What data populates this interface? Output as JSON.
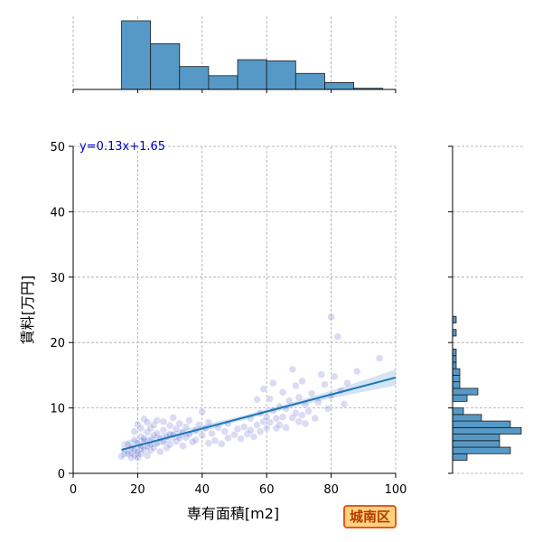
{
  "chart_data": {
    "type": "scatter",
    "title": "",
    "xlabel": "専有面積[m2]",
    "ylabel": "賃料[万円]",
    "xlim": [
      0,
      100
    ],
    "ylim": [
      0,
      50
    ],
    "x_ticks": [
      "0",
      "20",
      "40",
      "60",
      "80",
      "100"
    ],
    "y_ticks": [
      "0",
      "10",
      "20",
      "30",
      "40",
      "50"
    ],
    "grid": true,
    "regression": {
      "slope": 0.13,
      "intercept": 1.65,
      "x_range": [
        15,
        100
      ]
    },
    "equation_label": "y=0.13x+1.65",
    "badge": "城南区",
    "colors": {
      "points": "#5a5acf",
      "fit_line": "#1f77b4",
      "hist_bar": "#5699c6",
      "equation": "#0000bb",
      "badge_border": "#e8571a",
      "badge_fill": "#ffd27f"
    },
    "marginal_x_hist": {
      "bin_edges": [
        15,
        24,
        33,
        42,
        51,
        60,
        69,
        78,
        87,
        96
      ],
      "counts": [
        60,
        40,
        20,
        12,
        26,
        25,
        14,
        6,
        1
      ]
    },
    "marginal_y_hist": {
      "bin_edges": [
        2,
        3,
        4,
        5,
        6,
        7,
        8,
        9,
        10,
        11,
        12,
        13,
        14,
        15,
        16,
        17,
        18,
        19
      ],
      "counts": [
        4,
        16,
        13,
        13,
        19,
        16,
        8,
        3,
        0,
        4,
        7,
        2,
        2,
        2,
        1,
        1,
        1,
        0
      ]
    },
    "marginal_y_hist_extra": [
      {
        "y": 21.5,
        "count": 1
      },
      {
        "y": 23.5,
        "count": 1
      }
    ],
    "points": [
      [
        15,
        2.6
      ],
      [
        16,
        3.4
      ],
      [
        17,
        3.0
      ],
      [
        17,
        4.4
      ],
      [
        18,
        3.1
      ],
      [
        18,
        2.4
      ],
      [
        18,
        3.9
      ],
      [
        19,
        5.1
      ],
      [
        19,
        2.7
      ],
      [
        19,
        3.6
      ],
      [
        19,
        6.4
      ],
      [
        20,
        2.9
      ],
      [
        20,
        4.6
      ],
      [
        20,
        3.3
      ],
      [
        20,
        7.5
      ],
      [
        20,
        2.4
      ],
      [
        21,
        3.8
      ],
      [
        21,
        5.6
      ],
      [
        21,
        4.2
      ],
      [
        21,
        6.9
      ],
      [
        21,
        3.0
      ],
      [
        22,
        4.9
      ],
      [
        22,
        3.6
      ],
      [
        22,
        8.3
      ],
      [
        22,
        5.3
      ],
      [
        23,
        2.7
      ],
      [
        23,
        4.1
      ],
      [
        23,
        6.3
      ],
      [
        23,
        7.8
      ],
      [
        24,
        3.5
      ],
      [
        24,
        5.0
      ],
      [
        24,
        4.4
      ],
      [
        24,
        6.9
      ],
      [
        25,
        5.8
      ],
      [
        25,
        3.9
      ],
      [
        25,
        7.4
      ],
      [
        26,
        4.6
      ],
      [
        26,
        6.1
      ],
      [
        26,
        8.1
      ],
      [
        27,
        5.3
      ],
      [
        27,
        3.3
      ],
      [
        28,
        6.6
      ],
      [
        28,
        4.8
      ],
      [
        28,
        7.9
      ],
      [
        29,
        5.6
      ],
      [
        29,
        3.9
      ],
      [
        30,
        6.0
      ],
      [
        30,
        4.4
      ],
      [
        30,
        7.3
      ],
      [
        31,
        5.9
      ],
      [
        31,
        8.5
      ],
      [
        32,
        4.9
      ],
      [
        32,
        6.8
      ],
      [
        33,
        5.4
      ],
      [
        33,
        7.6
      ],
      [
        34,
        6.3
      ],
      [
        34,
        4.2
      ],
      [
        35,
        7.1
      ],
      [
        35,
        5.5
      ],
      [
        36,
        6.0
      ],
      [
        36,
        8.1
      ],
      [
        37,
        4.8
      ],
      [
        38,
        6.6
      ],
      [
        38,
        5.1
      ],
      [
        39,
        7.4
      ],
      [
        40,
        5.8
      ],
      [
        40,
        9.4
      ],
      [
        41,
        6.9
      ],
      [
        42,
        4.6
      ],
      [
        42,
        7.8
      ],
      [
        43,
        6.1
      ],
      [
        44,
        5.0
      ],
      [
        45,
        7.0
      ],
      [
        46,
        4.5
      ],
      [
        47,
        6.4
      ],
      [
        48,
        5.4
      ],
      [
        48,
        7.6
      ],
      [
        50,
        5.9
      ],
      [
        51,
        6.8
      ],
      [
        52,
        5.3
      ],
      [
        53,
        7.1
      ],
      [
        54,
        6.0
      ],
      [
        55,
        6.6
      ],
      [
        55,
        8.4
      ],
      [
        56,
        5.6
      ],
      [
        57,
        7.4
      ],
      [
        57,
        11.3
      ],
      [
        58,
        6.4
      ],
      [
        58,
        9.2
      ],
      [
        59,
        7.9
      ],
      [
        59,
        12.9
      ],
      [
        60,
        8.6
      ],
      [
        60,
        6.9
      ],
      [
        61,
        11.4
      ],
      [
        61,
        7.8
      ],
      [
        62,
        9.6
      ],
      [
        62,
        13.8
      ],
      [
        63,
        8.4
      ],
      [
        63,
        6.9
      ],
      [
        64,
        10.2
      ],
      [
        64,
        7.4
      ],
      [
        65,
        12.4
      ],
      [
        65,
        8.6
      ],
      [
        66,
        9.9
      ],
      [
        66,
        7.0
      ],
      [
        67,
        11.1
      ],
      [
        68,
        8.5
      ],
      [
        68,
        15.9
      ],
      [
        69,
        13.4
      ],
      [
        69,
        9.2
      ],
      [
        70,
        7.9
      ],
      [
        70,
        11.6
      ],
      [
        71,
        8.9
      ],
      [
        71,
        14.1
      ],
      [
        72,
        10.5
      ],
      [
        72,
        7.6
      ],
      [
        73,
        9.5
      ],
      [
        74,
        12.2
      ],
      [
        75,
        8.4
      ],
      [
        76,
        10.9
      ],
      [
        77,
        15.1
      ],
      [
        78,
        13.6
      ],
      [
        79,
        9.9
      ],
      [
        80,
        11.9
      ],
      [
        80,
        23.9
      ],
      [
        81,
        14.8
      ],
      [
        82,
        20.9
      ],
      [
        83,
        12.6
      ],
      [
        84,
        10.6
      ],
      [
        85,
        13.8
      ],
      [
        88,
        15.6
      ],
      [
        95,
        17.6
      ]
    ]
  }
}
